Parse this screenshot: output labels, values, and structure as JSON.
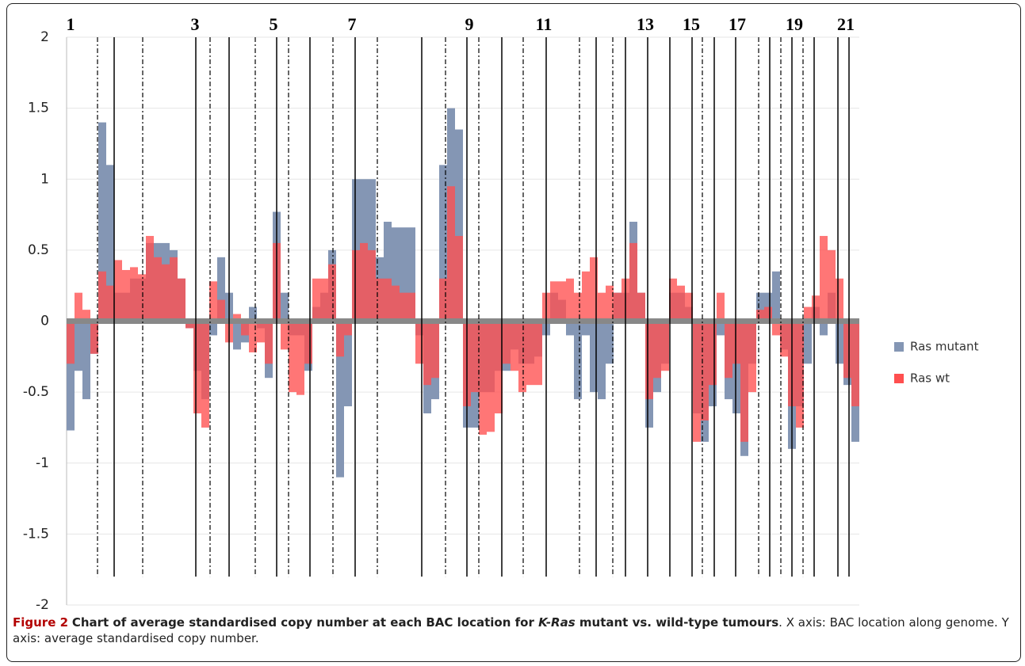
{
  "chart_data": {
    "type": "bar",
    "x": [
      0,
      1,
      2,
      3,
      4,
      5,
      6,
      7,
      8,
      9,
      10,
      11,
      12,
      13,
      14,
      15,
      16,
      17,
      18,
      19,
      20,
      21,
      22,
      23,
      24,
      25,
      26,
      27,
      28,
      29,
      30,
      31,
      32,
      33,
      34,
      35,
      36,
      37,
      38,
      39,
      40,
      41,
      42,
      43,
      44,
      45,
      46,
      47,
      48,
      49,
      50,
      51,
      52,
      53,
      54,
      55,
      56,
      57,
      58,
      59,
      60,
      61,
      62,
      63,
      64,
      65,
      66,
      67,
      68,
      69,
      70,
      71,
      72,
      73,
      74,
      75,
      76,
      77,
      78,
      79,
      80,
      81,
      82,
      83,
      84,
      85,
      86,
      87,
      88,
      89,
      90,
      91,
      92,
      93,
      94,
      95,
      96,
      97,
      98,
      99
    ],
    "xlim": [
      0,
      100
    ],
    "ylim": [
      -2,
      2
    ],
    "yticks": [
      2,
      1.5,
      1,
      0.5,
      0,
      -0.5,
      -1,
      -1.5,
      -2
    ],
    "grid": true,
    "legend": "right",
    "series": [
      {
        "name": "Ras mutant",
        "color": "#8496b4",
        "values": [
          -0.77,
          -0.35,
          -0.55,
          -0.23,
          1.4,
          1.1,
          0.2,
          0.2,
          0.3,
          0.3,
          0.55,
          0.55,
          0.55,
          0.5,
          0.3,
          -0.05,
          -0.35,
          -0.55,
          -0.1,
          0.45,
          0.2,
          -0.2,
          -0.15,
          0.1,
          -0.05,
          -0.4,
          0.77,
          0.2,
          -0.1,
          -0.1,
          -0.35,
          0.1,
          0.2,
          0.5,
          -1.1,
          -0.6,
          1.0,
          1.0,
          1.0,
          0.45,
          0.7,
          0.66,
          0.66,
          0.66,
          -0.1,
          -0.65,
          -0.55,
          1.1,
          1.5,
          1.35,
          -0.75,
          -0.75,
          -0.5,
          -0.5,
          -0.35,
          -0.35,
          -0.2,
          -0.3,
          -0.3,
          -0.25,
          -0.1,
          0.2,
          0.15,
          -0.1,
          -0.55,
          -0.1,
          -0.5,
          -0.55,
          -0.3,
          0.2,
          0.2,
          0.7,
          0.2,
          -0.75,
          -0.5,
          -0.3,
          0.2,
          0.2,
          0.1,
          -0.65,
          -0.85,
          -0.6,
          -0.1,
          -0.55,
          -0.65,
          -0.95,
          -0.3,
          0.2,
          0.2,
          0.35,
          -0.2,
          -0.9,
          -0.6,
          -0.3,
          0.1,
          -0.1,
          0.2,
          -0.3,
          -0.45,
          -0.85
        ]
      },
      {
        "name": "Ras wt",
        "color": "#ff4f4f",
        "values": [
          -0.3,
          0.2,
          0.08,
          -0.23,
          0.35,
          0.25,
          0.43,
          0.36,
          0.38,
          0.33,
          0.6,
          0.45,
          0.4,
          0.45,
          0.3,
          -0.05,
          -0.65,
          -0.75,
          0.28,
          0.15,
          -0.15,
          0.05,
          -0.1,
          -0.22,
          -0.15,
          -0.3,
          0.55,
          -0.2,
          -0.5,
          -0.52,
          -0.3,
          0.3,
          0.3,
          0.4,
          -0.25,
          -0.1,
          0.5,
          0.55,
          0.5,
          0.3,
          0.3,
          0.25,
          0.2,
          0.2,
          -0.3,
          -0.45,
          -0.4,
          0.3,
          0.95,
          0.6,
          -0.6,
          -0.5,
          -0.8,
          -0.78,
          -0.65,
          -0.3,
          -0.35,
          -0.5,
          -0.45,
          -0.45,
          0.2,
          0.28,
          0.28,
          0.3,
          0.2,
          0.35,
          0.45,
          0.2,
          0.25,
          0.2,
          0.3,
          0.55,
          0.2,
          -0.55,
          -0.4,
          -0.35,
          0.3,
          0.25,
          0.2,
          -0.85,
          -0.7,
          -0.45,
          0.2,
          -0.4,
          -0.3,
          -0.85,
          -0.5,
          0.08,
          0.1,
          -0.1,
          -0.25,
          -0.6,
          -0.75,
          0.1,
          0.18,
          0.6,
          0.5,
          0.3,
          -0.4,
          -0.6
        ]
      }
    ],
    "chromosome_boundaries": [
      6.0,
      16.3,
      20.5,
      26.5,
      30.7,
      36.4,
      44.8,
      50.5,
      54.9,
      60.5,
      66.8,
      70.5,
      73.3,
      76.1,
      78.9,
      81.7,
      84.4,
      88.7,
      91.5,
      94.3,
      97.3,
      98.7
    ],
    "centromeres": [
      3.9,
      9.6,
      18.1,
      23.8,
      28.0,
      33.6,
      39.2,
      47.8,
      52.0,
      57.6,
      64.7,
      68.9,
      80.2,
      87.3,
      90.1,
      92.9
    ],
    "chromosome_labels": [
      {
        "x": 0.5,
        "label": "1"
      },
      {
        "x": 16.2,
        "label": "3"
      },
      {
        "x": 26.1,
        "label": "5"
      },
      {
        "x": 36,
        "label": "7"
      },
      {
        "x": 50.8,
        "label": "9"
      },
      {
        "x": 60.2,
        "label": "11"
      },
      {
        "x": 73,
        "label": "13"
      },
      {
        "x": 78.8,
        "label": "15"
      },
      {
        "x": 84.6,
        "label": "17"
      },
      {
        "x": 91.8,
        "label": "19"
      },
      {
        "x": 98.3,
        "label": "21"
      }
    ],
    "caption": {
      "label": "Figure 2",
      "title_start": "Chart of average standardised copy number at each BAC location for ",
      "title_italic": "K-Ras",
      "title_end": " mutant vs. wild-type tumours",
      "text": ". X axis: BAC location along genome. Y axis: average standardised copy number."
    }
  }
}
